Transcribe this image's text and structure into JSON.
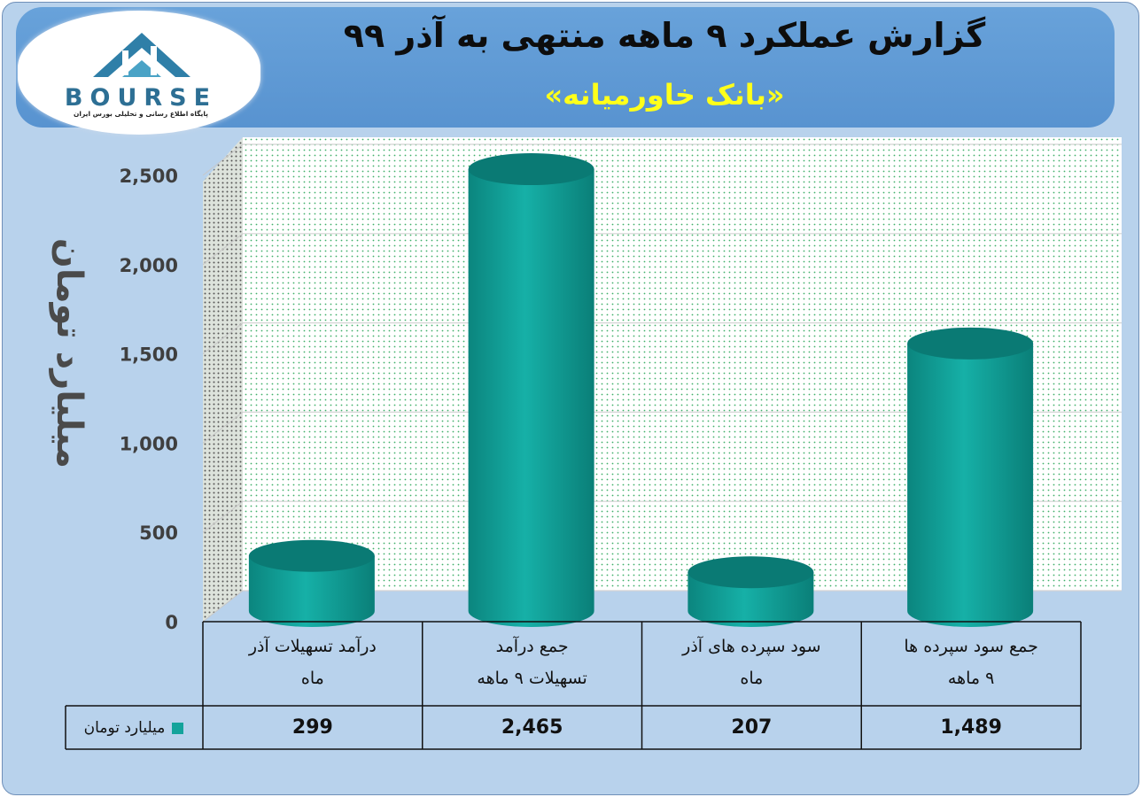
{
  "header": {
    "title": "گزارش عملکرد ۹ ماهه منتهی به آذر ۹۹",
    "subtitle": "«بانک خاورمیانه»"
  },
  "logo": {
    "brand": "BOURSE",
    "tagline": "پایگاه اطلاع رسانی و تحلیلی بورس ایران"
  },
  "colors": {
    "bar": "#14a39b",
    "bar_top": "#0a7a74",
    "banner": "#5d98d4",
    "title_text": "#0d0d0d",
    "subtitle_text": "#ffff1a",
    "background": "#b8d2ec"
  },
  "chart_data": {
    "type": "bar",
    "style": "3d-cylinder",
    "categories": [
      [
        "درآمد تسهیلات آذر",
        "ماه"
      ],
      [
        "جمع درآمد",
        "تسهیلات ۹ ماهه"
      ],
      [
        "سود سپرده های آذر",
        "ماه"
      ],
      [
        "جمع سود سپرده ها",
        "۹ ماهه"
      ]
    ],
    "series": [
      {
        "name": "میلیارد تومان",
        "values": [
          299,
          2465,
          207,
          1489
        ],
        "labels": [
          "299",
          "2,465",
          "207",
          "1,489"
        ]
      }
    ],
    "ylabel": "میلیارد تومان",
    "yticks": [
      "0",
      "500",
      "1,000",
      "1,500",
      "2,000",
      "2,500"
    ],
    "ylim": [
      0,
      2500
    ],
    "grid": true,
    "legend": "data-table"
  }
}
